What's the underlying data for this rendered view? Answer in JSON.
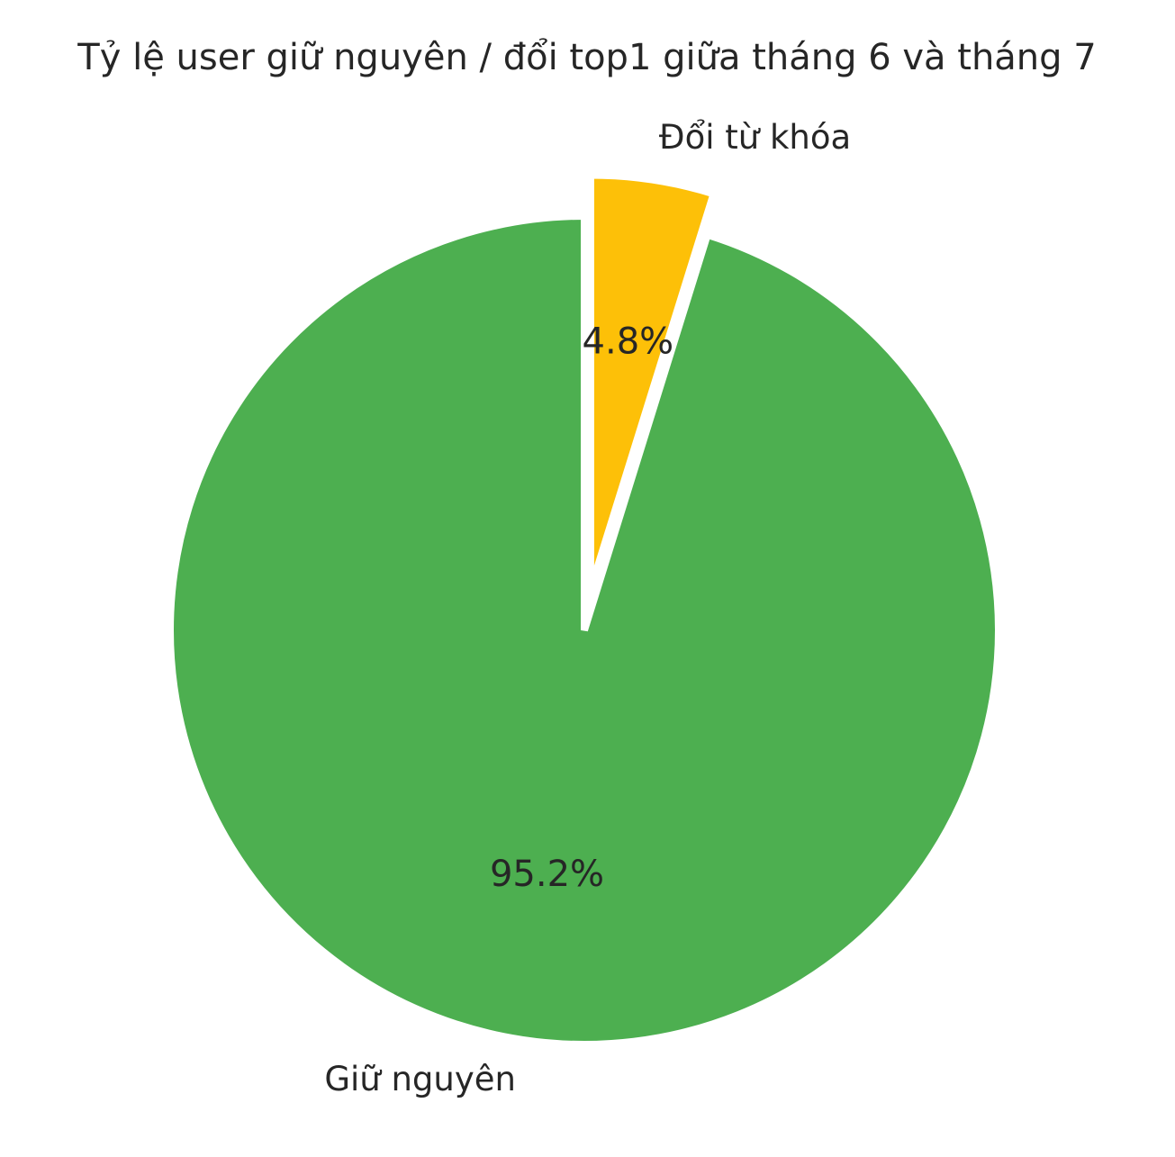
{
  "chart_data": {
    "type": "pie",
    "title": "Tỷ lệ user giữ nguyên / đổi top1 giữa tháng 6 và tháng 7",
    "start_angle_deg": 90,
    "direction": "counterclockwise",
    "slices": [
      {
        "label": "Giữ nguyên",
        "value": 95.2,
        "pct_label": "95.2%",
        "color": "#4daf50",
        "exploded": false
      },
      {
        "label": "Đổi từ khóa",
        "value": 4.8,
        "pct_label": "4.8%",
        "color": "#fdc008",
        "exploded": true
      }
    ],
    "edge_color": "#ffffff",
    "legend": "none"
  }
}
